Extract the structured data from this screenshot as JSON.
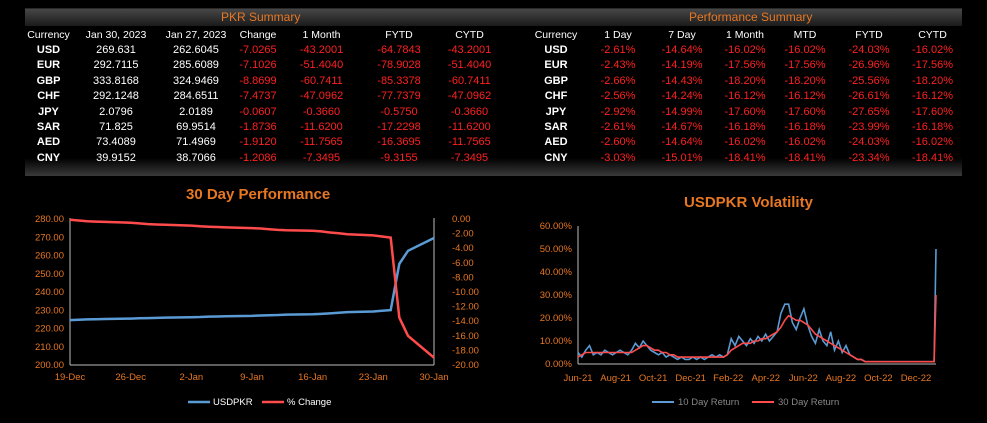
{
  "pkr_summary": {
    "title": "PKR Summary",
    "headers": [
      "Currency",
      "Jan 30, 2023",
      "Jan 27, 2023",
      "Change",
      "1 Month",
      "FYTD",
      "CYTD"
    ],
    "rows": [
      [
        "USD",
        "269.631",
        "262.6045",
        "-7.0265",
        "-43.2001",
        "-64.7843",
        "-43.2001"
      ],
      [
        "EUR",
        "292.7115",
        "285.6089",
        "-7.1026",
        "-51.4040",
        "-78.9028",
        "-51.4040"
      ],
      [
        "GBP",
        "333.8168",
        "324.9469",
        "-8.8699",
        "-60.7411",
        "-85.3378",
        "-60.7411"
      ],
      [
        "CHF",
        "292.1248",
        "284.6511",
        "-7.4737",
        "-47.0962",
        "-77.7379",
        "-47.0962"
      ],
      [
        "JPY",
        "2.0796",
        "2.0189",
        "-0.0607",
        "-0.3660",
        "-0.5750",
        "-0.3660"
      ],
      [
        "SAR",
        "71.825",
        "69.9514",
        "-1.8736",
        "-11.6200",
        "-17.2298",
        "-11.6200"
      ],
      [
        "AED",
        "73.4089",
        "71.4969",
        "-1.9120",
        "-11.7565",
        "-16.3695",
        "-11.7565"
      ],
      [
        "CNY",
        "39.9152",
        "38.7066",
        "-1.2086",
        "-7.3495",
        "-9.3155",
        "-7.3495"
      ]
    ]
  },
  "performance_summary": {
    "title": "Performance Summary",
    "headers": [
      "Currency",
      "1 Day",
      "7 Day",
      "1 Month",
      "MTD",
      "FYTD",
      "CYTD"
    ],
    "rows": [
      [
        "USD",
        "-2.61%",
        "-14.64%",
        "-16.02%",
        "-16.02%",
        "-24.03%",
        "-16.02%"
      ],
      [
        "EUR",
        "-2.43%",
        "-14.19%",
        "-17.56%",
        "-17.56%",
        "-26.96%",
        "-17.56%"
      ],
      [
        "GBP",
        "-2.66%",
        "-14.43%",
        "-18.20%",
        "-18.20%",
        "-25.56%",
        "-18.20%"
      ],
      [
        "CHF",
        "-2.56%",
        "-14.24%",
        "-16.12%",
        "-16.12%",
        "-26.61%",
        "-16.12%"
      ],
      [
        "JPY",
        "-2.92%",
        "-14.99%",
        "-17.60%",
        "-17.60%",
        "-27.65%",
        "-17.60%"
      ],
      [
        "SAR",
        "-2.61%",
        "-14.67%",
        "-16.18%",
        "-16.18%",
        "-23.99%",
        "-16.18%"
      ],
      [
        "AED",
        "-2.60%",
        "-14.64%",
        "-16.02%",
        "-16.02%",
        "-24.03%",
        "-16.02%"
      ],
      [
        "CNY",
        "-3.03%",
        "-15.01%",
        "-18.41%",
        "-18.41%",
        "-23.34%",
        "-18.41%"
      ]
    ]
  },
  "colors": {
    "accent": "#e87722",
    "negative": "#ff2020",
    "usd_line": "#5b9bd5",
    "red_line": "#ff4b4b"
  },
  "chart_data": [
    {
      "type": "line",
      "title": "30 Day Performance",
      "x_ticks": [
        "19-Dec",
        "26-Dec",
        "2-Jan",
        "9-Jan",
        "16-Jan",
        "23-Jan",
        "30-Jan"
      ],
      "x": [
        "2022-12-19",
        "2022-12-20",
        "2022-12-21",
        "2022-12-22",
        "2022-12-23",
        "2022-12-26",
        "2022-12-27",
        "2022-12-28",
        "2022-12-29",
        "2022-12-30",
        "2023-01-02",
        "2023-01-03",
        "2023-01-04",
        "2023-01-05",
        "2023-01-06",
        "2023-01-09",
        "2023-01-10",
        "2023-01-11",
        "2023-01-12",
        "2023-01-13",
        "2023-01-16",
        "2023-01-17",
        "2023-01-18",
        "2023-01-19",
        "2023-01-20",
        "2023-01-23",
        "2023-01-24",
        "2023-01-25",
        "2023-01-26",
        "2023-01-27",
        "2023-01-30"
      ],
      "y_left_lim": [
        200,
        280
      ],
      "y_left_ticks": [
        "200.00",
        "210.00",
        "220.00",
        "230.00",
        "240.00",
        "250.00",
        "260.00",
        "270.00",
        "280.00"
      ],
      "y_right_lim": [
        -20,
        0
      ],
      "y_right_ticks": [
        "0.00",
        "-2.00",
        "-4.00",
        "-6.00",
        "-8.00",
        "-10.00",
        "-12.00",
        "-14.00",
        "-16.00",
        "-18.00",
        "-20.00"
      ],
      "series": [
        {
          "name": "USDPKR",
          "axis": "left",
          "values": [
            224.6,
            224.8,
            225.0,
            225.1,
            225.2,
            225.4,
            225.6,
            225.7,
            225.8,
            226.0,
            226.2,
            226.3,
            226.5,
            226.6,
            226.7,
            226.9,
            227.1,
            227.3,
            227.4,
            227.6,
            227.8,
            228.0,
            228.3,
            228.6,
            229.0,
            229.3,
            229.7,
            230.1,
            255.4,
            262.6,
            269.6
          ]
        },
        {
          "name": "% Change",
          "axis": "right",
          "values": [
            -0.1,
            -0.2,
            -0.3,
            -0.35,
            -0.4,
            -0.5,
            -0.6,
            -0.7,
            -0.75,
            -0.8,
            -0.9,
            -1.0,
            -1.05,
            -1.1,
            -1.15,
            -1.25,
            -1.3,
            -1.4,
            -1.5,
            -1.55,
            -1.6,
            -1.7,
            -1.85,
            -1.95,
            -2.1,
            -2.25,
            -2.4,
            -2.55,
            -13.5,
            -16.0,
            -19.0
          ]
        }
      ]
    },
    {
      "type": "line",
      "title": "USDPKR Volatility",
      "x_ticks": [
        "Jun-21",
        "Aug-21",
        "Oct-21",
        "Dec-21",
        "Feb-22",
        "Apr-22",
        "Jun-22",
        "Aug-22",
        "Oct-22",
        "Dec-22"
      ],
      "y_lim": [
        0,
        0.6
      ],
      "y_ticks": [
        "0.00%",
        "10.00%",
        "20.00%",
        "30.00%",
        "40.00%",
        "50.00%",
        "60.00%"
      ],
      "x_index": [
        0,
        2,
        4,
        6,
        8,
        10,
        12,
        14,
        16,
        18,
        20,
        22,
        24,
        26,
        28,
        30,
        32,
        34,
        36,
        38,
        40,
        42,
        44,
        46,
        48,
        50,
        52,
        54,
        56,
        58,
        60,
        62,
        64,
        66,
        68,
        70,
        72,
        74,
        76,
        78,
        80,
        82,
        84,
        86,
        88,
        90,
        92,
        94,
        96,
        98,
        100,
        102,
        104,
        106,
        108,
        110,
        112,
        114,
        116,
        118,
        120,
        122,
        124,
        126,
        128,
        130,
        132,
        134,
        136,
        138,
        140,
        142,
        144,
        146,
        148,
        150,
        152,
        154,
        156,
        158,
        160,
        162,
        164,
        166,
        168,
        170,
        172,
        174,
        176,
        178,
        180,
        182,
        184,
        186,
        187
      ],
      "x_index_lim": [
        0,
        187
      ],
      "series": [
        {
          "name": "10 Day Return",
          "values": [
            0.05,
            0.03,
            0.06,
            0.08,
            0.04,
            0.05,
            0.04,
            0.06,
            0.05,
            0.04,
            0.05,
            0.06,
            0.05,
            0.04,
            0.06,
            0.09,
            0.07,
            0.1,
            0.08,
            0.06,
            0.05,
            0.04,
            0.05,
            0.03,
            0.04,
            0.03,
            0.02,
            0.03,
            0.02,
            0.02,
            0.03,
            0.02,
            0.03,
            0.02,
            0.03,
            0.04,
            0.03,
            0.04,
            0.03,
            0.04,
            0.11,
            0.08,
            0.12,
            0.1,
            0.08,
            0.11,
            0.09,
            0.12,
            0.1,
            0.13,
            0.1,
            0.12,
            0.14,
            0.22,
            0.26,
            0.26,
            0.18,
            0.15,
            0.2,
            0.24,
            0.17,
            0.12,
            0.09,
            0.15,
            0.1,
            0.08,
            0.14,
            0.06,
            0.1,
            0.05,
            0.08,
            0.04,
            0.03,
            0.02,
            0.02,
            0.01,
            0.01,
            0.01,
            0.01,
            0.01,
            0.01,
            0.01,
            0.01,
            0.01,
            0.01,
            0.01,
            0.01,
            0.01,
            0.01,
            0.01,
            0.01,
            0.01,
            0.01,
            0.01,
            0.5
          ]
        },
        {
          "name": "30 Day Return",
          "values": [
            0.03,
            0.04,
            0.05,
            0.05,
            0.05,
            0.05,
            0.05,
            0.05,
            0.05,
            0.05,
            0.05,
            0.05,
            0.05,
            0.05,
            0.05,
            0.06,
            0.07,
            0.08,
            0.08,
            0.07,
            0.06,
            0.06,
            0.05,
            0.05,
            0.04,
            0.04,
            0.03,
            0.03,
            0.03,
            0.03,
            0.03,
            0.03,
            0.03,
            0.03,
            0.03,
            0.03,
            0.03,
            0.03,
            0.03,
            0.04,
            0.06,
            0.07,
            0.08,
            0.09,
            0.09,
            0.09,
            0.1,
            0.1,
            0.11,
            0.11,
            0.12,
            0.13,
            0.14,
            0.16,
            0.19,
            0.21,
            0.2,
            0.19,
            0.19,
            0.18,
            0.17,
            0.15,
            0.13,
            0.12,
            0.11,
            0.1,
            0.09,
            0.08,
            0.07,
            0.06,
            0.05,
            0.04,
            0.03,
            0.02,
            0.02,
            0.01,
            0.01,
            0.01,
            0.01,
            0.01,
            0.01,
            0.01,
            0.01,
            0.01,
            0.01,
            0.01,
            0.01,
            0.01,
            0.01,
            0.01,
            0.01,
            0.01,
            0.01,
            0.01,
            0.3
          ]
        }
      ]
    }
  ]
}
